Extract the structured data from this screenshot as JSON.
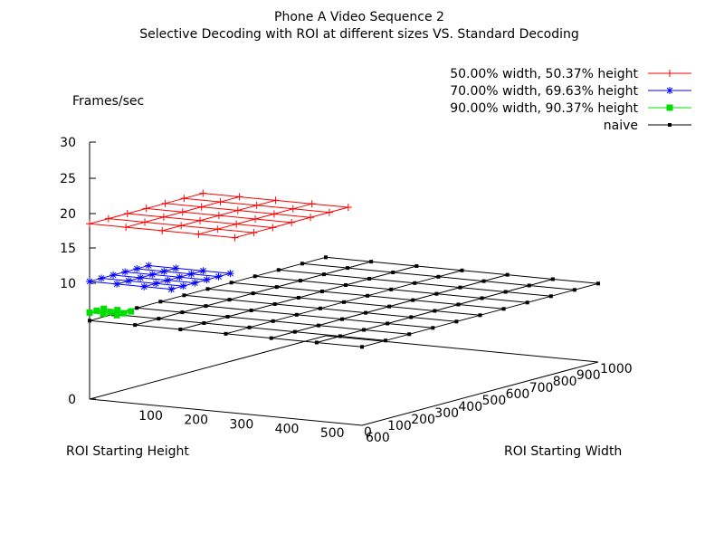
{
  "chart_data": {
    "type": "surface3d",
    "title": "Phone A Video Sequence 2",
    "subtitle": "Selective Decoding with ROI at different sizes VS. Standard Decoding",
    "zlabel": "Frames/sec",
    "xlabel": "ROI Starting Height",
    "ylabel": "ROI Starting Width",
    "zlim": [
      0,
      30
    ],
    "z_ticks": [
      "0",
      "10",
      "15",
      "20",
      "25",
      "30"
    ],
    "x_ticks": [
      "100",
      "200",
      "300",
      "400",
      "500",
      "600"
    ],
    "y_ticks": [
      "0",
      "100",
      "200",
      "300",
      "400",
      "500",
      "600",
      "700",
      "800",
      "900",
      "1000"
    ],
    "legend_position": "top-right",
    "series": [
      {
        "name": "50.00% width, 50.37% height",
        "color": "#ff0000",
        "marker": "plus",
        "heights": [
          0,
          80,
          160,
          240,
          320
        ],
        "widths": [
          0,
          80,
          160,
          240,
          320,
          400,
          480
        ],
        "fps": 15.2
      },
      {
        "name": "70.00% width, 69.63% height",
        "color": "#0000ff",
        "marker": "star",
        "heights": [
          0,
          60,
          120,
          180
        ],
        "widths": [
          0,
          50,
          100,
          150,
          200,
          250
        ],
        "fps": 10.2
      },
      {
        "name": "90.00% width, 90.37% height",
        "color": "#00dd00",
        "marker": "square",
        "heights": [
          0,
          30,
          60
        ],
        "widths": [
          0,
          30,
          60
        ],
        "fps": 7.5
      },
      {
        "name": "naive",
        "color": "#000000",
        "marker": "dot",
        "heights": [
          0,
          100,
          200,
          300,
          400,
          500,
          600
        ],
        "widths": [
          0,
          100,
          200,
          300,
          400,
          500,
          600,
          700,
          800,
          900,
          1000
        ],
        "fps": 6.8
      }
    ]
  }
}
